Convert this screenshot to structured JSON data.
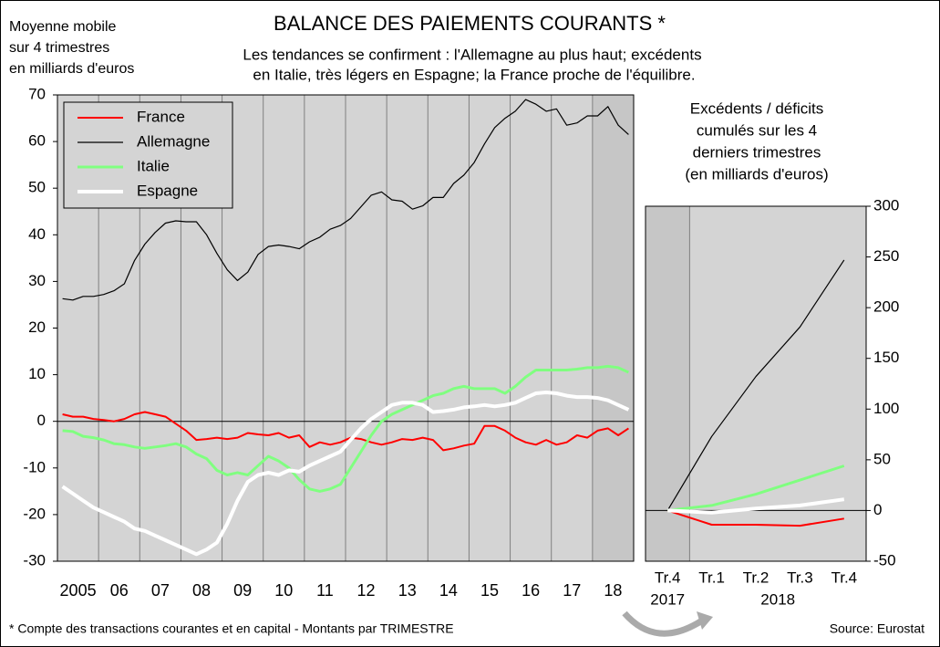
{
  "chart_data": [
    {
      "type": "line",
      "title": "BALANCE DES PAIEMENTS COURANTS *",
      "subtitle": [
        "Les tendances se confirment : l'Allemagne au plus haut; excédents",
        "en Italie, très légers en Espagne; la France proche de l'équilibre."
      ],
      "y_label": [
        "Moyenne mobile",
        "sur 4 trimestres",
        "en milliards d'euros"
      ],
      "x": [
        2005.125,
        2005.375,
        2005.625,
        2005.875,
        2006.125,
        2006.375,
        2006.625,
        2006.875,
        2007.125,
        2007.375,
        2007.625,
        2007.875,
        2008.125,
        2008.375,
        2008.625,
        2008.875,
        2009.125,
        2009.375,
        2009.625,
        2009.875,
        2010.125,
        2010.375,
        2010.625,
        2010.875,
        2011.125,
        2011.375,
        2011.625,
        2011.875,
        2012.125,
        2012.375,
        2012.625,
        2012.875,
        2013.125,
        2013.375,
        2013.625,
        2013.875,
        2014.125,
        2014.375,
        2014.625,
        2014.875,
        2015.125,
        2015.375,
        2015.625,
        2015.875,
        2016.125,
        2016.375,
        2016.625,
        2016.875,
        2017.125,
        2017.375,
        2017.625,
        2017.875,
        2018.125,
        2018.375,
        2018.625,
        2018.875
      ],
      "series": [
        {
          "name": "France",
          "color": "#ff0000",
          "width": 2,
          "values": [
            1.5,
            1,
            1,
            0.5,
            0.3,
            0,
            0.5,
            1.5,
            2,
            1.5,
            1,
            -0.5,
            -2,
            -4,
            -3.8,
            -3.5,
            -3.8,
            -3.5,
            -2.5,
            -2.8,
            -3,
            -2.5,
            -3.5,
            -3,
            -5.5,
            -4.5,
            -5,
            -4.5,
            -3.5,
            -3.8,
            -4.5,
            -5,
            -4.5,
            -3.8,
            -4,
            -3.5,
            -4,
            -6.2,
            -5.8,
            -5.2,
            -4.8,
            -1,
            -1,
            -2,
            -3.5,
            -4.5,
            -5,
            -4,
            -5,
            -4.5,
            -3,
            -3.5,
            -2,
            -1.5,
            -3,
            -1.5
          ]
        },
        {
          "name": "Allemagne",
          "color": "#000000",
          "width": 1.2,
          "values": [
            26.3,
            26,
            26.8,
            26.8,
            27.2,
            28,
            29.5,
            34.5,
            38,
            40.5,
            42.5,
            43,
            42.8,
            42.8,
            40,
            36,
            32.5,
            30.2,
            32,
            35.8,
            37.5,
            37.8,
            37.5,
            37,
            38.5,
            39.5,
            41.2,
            42,
            43.5,
            46,
            48.5,
            49.2,
            47.5,
            47.2,
            45.5,
            46.2,
            48,
            48,
            51,
            52.8,
            55.5,
            59.5,
            63,
            65,
            66.5,
            69,
            68,
            66.5,
            67,
            63.5,
            64,
            65.5,
            65.5,
            67.5,
            63.5,
            61.5
          ]
        },
        {
          "name": "Italie",
          "color": "#80ff80",
          "width": 3,
          "values": [
            -2,
            -2.2,
            -3.2,
            -3.5,
            -4,
            -4.8,
            -5,
            -5.5,
            -5.8,
            -5.5,
            -5.2,
            -4.8,
            -5.5,
            -7,
            -8,
            -10.5,
            -11.5,
            -11,
            -11.5,
            -9.5,
            -7.5,
            -8.5,
            -10,
            -12.5,
            -14.5,
            -15,
            -14.5,
            -13.5,
            -10,
            -6.5,
            -3,
            0,
            1.5,
            2.5,
            3.5,
            4.5,
            5.5,
            6,
            7,
            7.5,
            7,
            7,
            7,
            6,
            7.5,
            9.5,
            11,
            11,
            11,
            11,
            11.2,
            11.5,
            11.5,
            11.8,
            11.5,
            10.5
          ]
        },
        {
          "name": "Espagne",
          "color": "#ffffff",
          "width": 4,
          "values": [
            -14,
            -15.5,
            -17,
            -18.5,
            -19.5,
            -20.5,
            -21.5,
            -23,
            -23.5,
            -24.5,
            -25.5,
            -26.5,
            -27.5,
            -28.5,
            -27.5,
            -26,
            -22,
            -17,
            -13,
            -11.5,
            -11,
            -11.5,
            -10.5,
            -10.8,
            -9.5,
            -8.5,
            -7.5,
            -6.5,
            -4,
            -1.5,
            0.5,
            2,
            3.5,
            4,
            4,
            3.5,
            2,
            2.2,
            2.5,
            3,
            3.2,
            3.5,
            3.2,
            3.5,
            4,
            5,
            6,
            6.2,
            6,
            5.5,
            5.2,
            5.2,
            5,
            4.5,
            3.5,
            2.5
          ]
        }
      ],
      "xlim": [
        2005,
        2019
      ],
      "xticks": [
        {
          "value": 2005.5,
          "label": "2005"
        },
        {
          "value": 2006.5,
          "label": "06"
        },
        {
          "value": 2007.5,
          "label": "07"
        },
        {
          "value": 2008.5,
          "label": "08"
        },
        {
          "value": 2009.5,
          "label": "09"
        },
        {
          "value": 2010.5,
          "label": "10"
        },
        {
          "value": 2011.5,
          "label": "11"
        },
        {
          "value": 2012.5,
          "label": "12"
        },
        {
          "value": 2013.5,
          "label": "13"
        },
        {
          "value": 2014.5,
          "label": "14"
        },
        {
          "value": 2015.5,
          "label": "15"
        },
        {
          "value": 2016.5,
          "label": "16"
        },
        {
          "value": 2017.5,
          "label": "17"
        },
        {
          "value": 2018.5,
          "label": "18"
        }
      ],
      "xgrid": [
        2006,
        2007,
        2008,
        2009,
        2010,
        2011,
        2012,
        2013,
        2014,
        2015,
        2016,
        2017,
        2018
      ],
      "highlight_x": [
        2018,
        2019
      ],
      "ylim": [
        -30,
        70
      ],
      "yticks": [
        70,
        60,
        50,
        40,
        30,
        20,
        10,
        0,
        -10,
        -20,
        -30
      ],
      "legend": "top-left"
    },
    {
      "type": "line",
      "title": [
        "Excédents / déficits",
        "cumulés sur les 4",
        "derniers trimestres",
        "(en milliards d'euros)"
      ],
      "categories": [
        "Tr.4",
        "Tr.1",
        "Tr.2",
        "Tr.3",
        "Tr.4"
      ],
      "year_labels": [
        "2017",
        "2018"
      ],
      "highlight_category": 0,
      "series": [
        {
          "name": "France",
          "color": "#ff0000",
          "width": 2,
          "values": [
            0,
            -14,
            -14,
            -15,
            -8
          ]
        },
        {
          "name": "Allemagne",
          "color": "#000000",
          "width": 1.2,
          "values": [
            0,
            73,
            132,
            181,
            247
          ]
        },
        {
          "name": "Italie",
          "color": "#80ff80",
          "width": 3,
          "values": [
            0,
            5,
            16,
            30,
            44
          ]
        },
        {
          "name": "Espagne",
          "color": "#ffffff",
          "width": 4,
          "values": [
            0,
            -2,
            2,
            5,
            11
          ]
        }
      ],
      "ylim": [
        -50,
        300
      ],
      "yticks": [
        300,
        250,
        200,
        150,
        100,
        50,
        0,
        -50
      ]
    }
  ],
  "footer": {
    "note": "* Compte des transactions courantes et en capital - Montants par TRIMESTRE",
    "source": "Source: Eurostat"
  }
}
